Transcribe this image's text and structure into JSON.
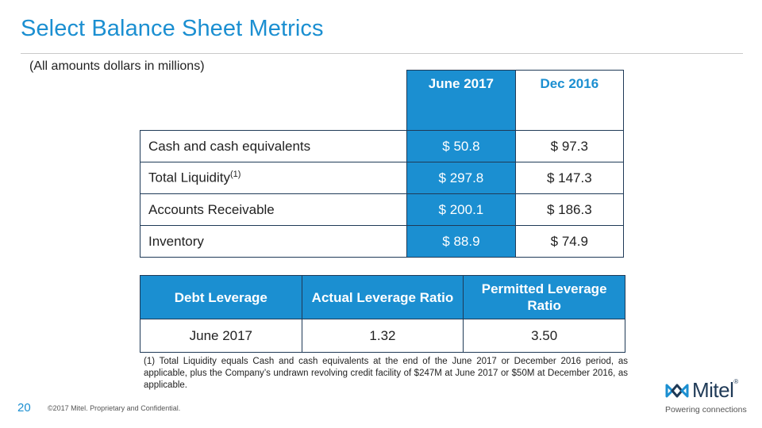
{
  "title": "Select Balance Sheet Metrics",
  "subtitle": "(All amounts dollars in millions)",
  "metrics_table": {
    "headers": [
      "June 2017",
      "Dec 2016"
    ],
    "rows": [
      {
        "label": "Cash and cash equivalents",
        "sup": "",
        "june": "$ 50.8",
        "dec": "$ 97.3"
      },
      {
        "label": "Total Liquidity",
        "sup": "(1)",
        "june": "$ 297.8",
        "dec": "$ 147.3"
      },
      {
        "label": "Accounts Receivable",
        "sup": "",
        "june": "$ 200.1",
        "dec": "$ 186.3"
      },
      {
        "label": "Inventory",
        "sup": "",
        "june": "$ 88.9",
        "dec": "$ 74.9"
      }
    ]
  },
  "leverage_table": {
    "headers": [
      "Debt Leverage",
      "Actual Leverage Ratio",
      "Permitted Leverage Ratio"
    ],
    "row": [
      "June 2017",
      "1.32",
      "3.50"
    ]
  },
  "footnote": "(1) Total Liquidity equals Cash and cash equivalents at the end of the June 2017 or December 2016 period, as applicable, plus the Company’s undrawn revolving credit facility of $247M at June 2017 or $50M at December 2016, as applicable.",
  "footer": {
    "page_number": "20",
    "copyright": "©2017 Mitel. Proprietary and Confidential.",
    "logo_word": "Mitel",
    "logo_mark": "®",
    "tagline": "Powering connections"
  },
  "colors": {
    "accent": "#1b8fd1",
    "border": "#1f3a57"
  },
  "icons": {
    "logo": "mitel-logo-icon"
  }
}
